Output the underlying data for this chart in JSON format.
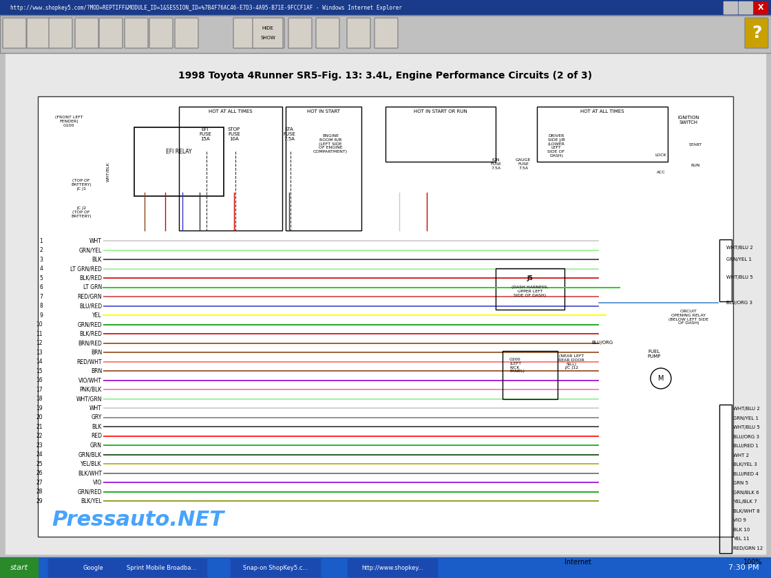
{
  "title": "1998 Toyota 4Runner SR5-Fig. 13: 3.4L, Engine Performance Circuits (2 of 3)",
  "title_fontsize": 11,
  "browser_url": "http://www.shopkey5.com/?MOD=REPTIFF&MODULE_ID=1&SESSION_ID=%7B4F76AC46-E7D3-4A95-B71E-9FCCF1AF - Windows Internet Explorer",
  "watermark": "Pressauto.NET",
  "taskbar_time": "7:30 PM",
  "bg_color": "#c0c0c0",
  "diagram_bg": "#ffffff",
  "title_bar_color": "#000080",
  "toolbar_bg": "#c0c0c0",
  "taskbar_bg": "#0000aa",
  "wire_colors": [
    {
      "num": 1,
      "label": "WHT",
      "color": "#c8c8c8"
    },
    {
      "num": 2,
      "label": "GRN/YEL",
      "color": "#90ee90"
    },
    {
      "num": 3,
      "label": "BLK",
      "color": "#333333"
    },
    {
      "num": 4,
      "label": "LT GRN/RED",
      "color": "#90ee90"
    },
    {
      "num": 5,
      "label": "BLK/RED",
      "color": "#cc0000"
    },
    {
      "num": 6,
      "label": "LT GRN",
      "color": "#32cd32"
    },
    {
      "num": 7,
      "label": "RED/GRN",
      "color": "#cc4444"
    },
    {
      "num": 8,
      "label": "BLU/RED",
      "color": "#4444cc"
    },
    {
      "num": 9,
      "label": "YEL",
      "color": "#ffff00"
    },
    {
      "num": 10,
      "label": "GRN/RED",
      "color": "#009900"
    },
    {
      "num": 11,
      "label": "BLK/RED",
      "color": "#cc0000"
    },
    {
      "num": 12,
      "label": "BRN/RED",
      "color": "#8b4513"
    },
    {
      "num": 13,
      "label": "BRN",
      "color": "#8b4513"
    },
    {
      "num": 14,
      "label": "RED/WHT",
      "color": "#ff6666"
    },
    {
      "num": 15,
      "label": "BRN",
      "color": "#8b4513"
    },
    {
      "num": 16,
      "label": "VIO/WHT",
      "color": "#9400d3"
    },
    {
      "num": 17,
      "label": "PNK/BLK",
      "color": "#ff69b4"
    },
    {
      "num": 18,
      "label": "WHT/GRN",
      "color": "#90ee90"
    },
    {
      "num": 19,
      "label": "WHT",
      "color": "#c8c8c8"
    },
    {
      "num": 20,
      "label": "GRY",
      "color": "#808080"
    },
    {
      "num": 21,
      "label": "BLK",
      "color": "#333333"
    },
    {
      "num": 22,
      "label": "RED",
      "color": "#ff0000"
    },
    {
      "num": 23,
      "label": "GRN",
      "color": "#00aa00"
    },
    {
      "num": 24,
      "label": "GRN/BLK",
      "color": "#004400"
    },
    {
      "num": 25,
      "label": "YEL/BLK",
      "color": "#aaaa00"
    },
    {
      "num": 26,
      "label": "BLK/WHT",
      "color": "#666666"
    },
    {
      "num": 27,
      "label": "VIO",
      "color": "#9400d3"
    },
    {
      "num": 28,
      "label": "GRN/RED",
      "color": "#009900"
    },
    {
      "num": 29,
      "label": "BLK/YEL",
      "color": "#888800"
    }
  ],
  "right_wire_labels": [
    "WHT/BLU 2",
    "GRN/YEL 1",
    "WHT/BLU 5",
    "BLU/ORG 3",
    "BLU/RED 1",
    "WHT 2",
    "BLK/YEL 3",
    "BLU/RED 4",
    "GRN 5",
    "GRN/BLK 6",
    "YEL/BLK 7",
    "BLK/WHT 8",
    "VIO 9",
    "BLK 10",
    "YEL 11",
    "RED/GRN 12"
  ]
}
